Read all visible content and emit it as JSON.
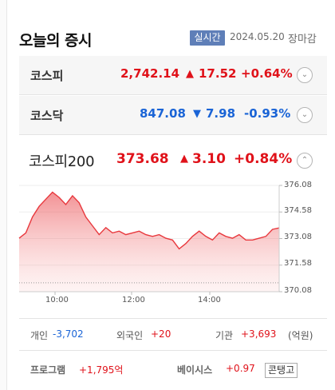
{
  "header": {
    "title": "오늘의 증시",
    "live_badge": "실시간",
    "date": "2024.05.20",
    "status": "장마감"
  },
  "indices": [
    {
      "name": "코스피",
      "value": "2,742.14",
      "arrow": "▲",
      "change": "17.52",
      "percent": "+0.64%",
      "direction": "up",
      "toggle": "⌄"
    },
    {
      "name": "코스닥",
      "value": "847.08",
      "arrow": "▼",
      "change": "7.98",
      "percent": "-0.93%",
      "direction": "down",
      "toggle": "⌄"
    }
  ],
  "kospi200": {
    "name": "코스피200",
    "value": "373.68",
    "arrow": "▲",
    "change": "3.10",
    "percent": "+0.84%",
    "toggle": "⌃"
  },
  "chart_data": {
    "type": "area",
    "y_ticks": [
      "376.08",
      "374.58",
      "373.08",
      "371.58",
      "370.08"
    ],
    "x_ticks": [
      "10:00",
      "12:00",
      "14:00"
    ],
    "ylim": [
      370.08,
      376.08
    ],
    "x": [
      "09:00",
      "09:10",
      "09:20",
      "09:30",
      "09:40",
      "09:50",
      "10:00",
      "10:10",
      "10:20",
      "10:30",
      "10:40",
      "10:50",
      "11:00",
      "11:10",
      "11:20",
      "11:30",
      "11:40",
      "11:50",
      "12:00",
      "12:10",
      "12:20",
      "12:30",
      "12:40",
      "12:50",
      "13:00",
      "13:10",
      "13:20",
      "13:30",
      "13:40",
      "13:50",
      "14:00",
      "14:10",
      "14:20",
      "14:30",
      "14:40",
      "14:50",
      "15:00",
      "15:10",
      "15:20",
      "15:30"
    ],
    "values": [
      373.1,
      373.4,
      374.3,
      374.9,
      375.3,
      375.7,
      375.4,
      375.0,
      375.5,
      375.1,
      374.3,
      373.8,
      373.3,
      373.7,
      373.4,
      373.5,
      373.3,
      373.4,
      373.5,
      373.3,
      373.2,
      373.3,
      373.1,
      373.0,
      372.5,
      372.8,
      373.2,
      373.5,
      373.2,
      373.0,
      373.4,
      373.2,
      373.1,
      373.3,
      373.0,
      373.0,
      373.1,
      373.2,
      373.6,
      373.68
    ],
    "prev_close": 370.58,
    "colors": {
      "line": "#e8383d",
      "fill": "#f8b4b4"
    }
  },
  "investors": [
    {
      "label": "개인",
      "value": "-3,702"
    },
    {
      "label": "외국인",
      "value": "+20"
    },
    {
      "label": "기관",
      "value": "+3,693"
    }
  ],
  "investors_unit": "(억원)",
  "program": {
    "label": "프로그램",
    "value": "+1,795억"
  },
  "basis": {
    "label": "베이시스",
    "value": "+0.97",
    "tag": "콘탱고"
  }
}
